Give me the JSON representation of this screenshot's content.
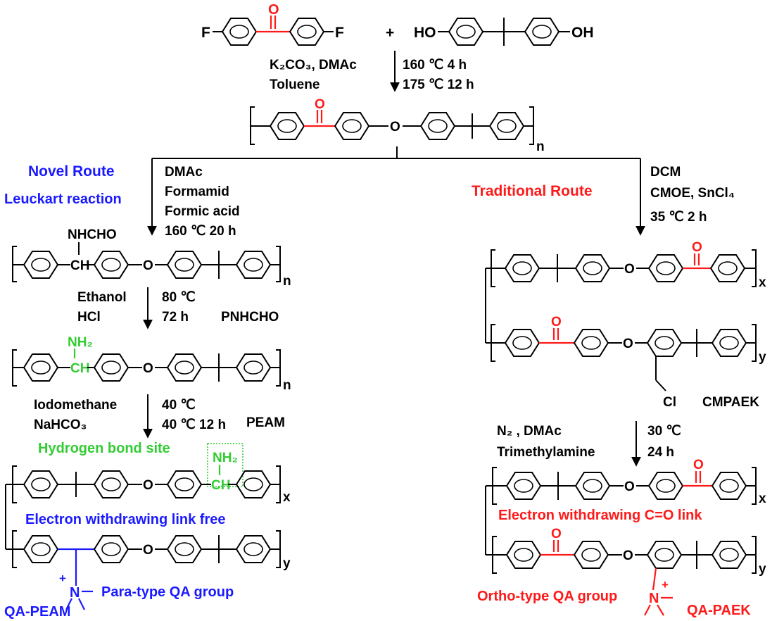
{
  "monomers": {
    "f": "F",
    "f2": "F",
    "o": "O",
    "plus": "+",
    "ho": "HO",
    "oh": "OH"
  },
  "step1": {
    "reagent_k2co3": "K₂CO₃, DMAc",
    "reagent_toluene": "Toluene",
    "cond_160": "160 ℃ 4 h",
    "cond_175": "175 ℃ 12 h"
  },
  "paek": {
    "ether_o": "O",
    "carbonyl_o": "O",
    "n": "n"
  },
  "left_route": {
    "title": "Novel  Route",
    "subtitle": "Leuckart reaction",
    "reagents": [
      "DMAc",
      "Formamid",
      "Formic acid",
      "160 ℃ 20 h"
    ]
  },
  "right_route": {
    "title": "Traditional Route",
    "reagents": [
      "DCM",
      "CMOE, SnCl₄",
      "35 ℃ 2 h"
    ]
  },
  "pnhcho": {
    "group": "NHCHO",
    "ch": "CH",
    "ether_o": "O",
    "n": "n",
    "name": "PNHCHO"
  },
  "step_hydrolysis": {
    "ethanol": "Ethanol",
    "hcl": "HCl",
    "temp": "80 ℃",
    "time": "72 h"
  },
  "peam": {
    "nh2": "NH₂",
    "ch": "CH",
    "ether_o": "O",
    "n": "n",
    "name": "PEAM"
  },
  "step_methylation": {
    "iodomethane": "Iodomethane",
    "nahco3": "NaHCO₃",
    "temp": "40 ℃",
    "cond": "40 ℃ 12 h"
  },
  "qa_peam": {
    "hbond_label": "Hydrogen bond site",
    "nh2": "NH₂",
    "ch": "CH",
    "ether_o_top": "O",
    "x": "x",
    "electron_label": "Electron withdrawing link free",
    "ether_o_bottom": "O",
    "y": "y",
    "plus": "+",
    "n": "N",
    "para_label": "Para-type QA group",
    "name": "QA-PEAM"
  },
  "cmpaek": {
    "ether_o_top": "O",
    "carbonyl_o_top": "O",
    "x": "x",
    "carbonyl_o_bottom": "O",
    "ether_o_bottom": "O",
    "y": "y",
    "cl": "Cl",
    "name": "CMPAEK"
  },
  "step_amination": {
    "n2_dmac": "N₂ ,  DMAc",
    "trimethylamine": "Trimethylamine",
    "temp": "30 ℃",
    "time": "24 h"
  },
  "qa_paek": {
    "ether_o_top": "O",
    "carbonyl_o_top": "O",
    "x": "x",
    "electron_label": "Electron withdrawing  C=O link",
    "carbonyl_o_bottom": "O",
    "ether_o_bottom": "O",
    "y": "y",
    "ortho_label": "Ortho-type QA group",
    "plus": "+",
    "n": "N",
    "name": "QA-PAEK"
  },
  "colors": {
    "red": "#ff1a1a",
    "blue": "#1a1aff",
    "green": "#33cc33",
    "black": "#000000"
  }
}
